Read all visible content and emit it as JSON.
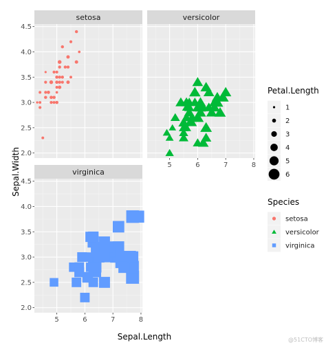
{
  "chart_data": {
    "type": "scatter",
    "facet_by": "Species",
    "xlabel": "Sepal.Length",
    "ylabel": "Sepal.Width",
    "xlim": [
      4.2,
      8.05
    ],
    "ylim": [
      1.9,
      4.55
    ],
    "x_ticks": [
      5,
      6,
      7,
      8
    ],
    "y_ticks": [
      2.0,
      2.5,
      3.0,
      3.5,
      4.0,
      4.5
    ],
    "x_tick_labels": [
      "5",
      "6",
      "7",
      "8"
    ],
    "y_tick_labels": [
      "2.0",
      "2.5",
      "3.0",
      "3.5",
      "4.0",
      "4.5"
    ],
    "grid": true,
    "size_variable": "Petal.Length",
    "colors": {
      "setosa": "#F8766D",
      "versicolor": "#00BA38",
      "virginica": "#619CFF"
    },
    "panels": [
      {
        "name": "setosa",
        "shape": "circle",
        "points": [
          [
            5.1,
            3.5,
            1.4
          ],
          [
            4.9,
            3.0,
            1.4
          ],
          [
            4.7,
            3.2,
            1.3
          ],
          [
            4.6,
            3.1,
            1.5
          ],
          [
            5.0,
            3.6,
            1.4
          ],
          [
            5.4,
            3.9,
            1.7
          ],
          [
            4.6,
            3.4,
            1.4
          ],
          [
            5.0,
            3.4,
            1.5
          ],
          [
            4.4,
            2.9,
            1.4
          ],
          [
            4.9,
            3.1,
            1.5
          ],
          [
            5.4,
            3.7,
            1.5
          ],
          [
            4.8,
            3.4,
            1.6
          ],
          [
            4.8,
            3.0,
            1.4
          ],
          [
            4.3,
            3.0,
            1.1
          ],
          [
            5.8,
            4.0,
            1.2
          ],
          [
            5.7,
            4.4,
            1.5
          ],
          [
            5.4,
            3.9,
            1.3
          ],
          [
            5.1,
            3.5,
            1.4
          ],
          [
            5.7,
            3.8,
            1.7
          ],
          [
            5.1,
            3.8,
            1.5
          ],
          [
            5.4,
            3.4,
            1.7
          ],
          [
            5.1,
            3.7,
            1.5
          ],
          [
            4.6,
            3.6,
            1.0
          ],
          [
            5.1,
            3.3,
            1.7
          ],
          [
            4.8,
            3.4,
            1.9
          ],
          [
            5.0,
            3.0,
            1.6
          ],
          [
            5.0,
            3.4,
            1.6
          ],
          [
            5.2,
            3.5,
            1.5
          ],
          [
            5.2,
            3.4,
            1.4
          ],
          [
            4.7,
            3.2,
            1.6
          ],
          [
            4.8,
            3.1,
            1.6
          ],
          [
            5.4,
            3.4,
            1.5
          ],
          [
            5.2,
            4.1,
            1.5
          ],
          [
            5.5,
            4.2,
            1.4
          ],
          [
            4.9,
            3.1,
            1.5
          ],
          [
            5.0,
            3.2,
            1.2
          ],
          [
            5.5,
            3.5,
            1.3
          ],
          [
            4.9,
            3.6,
            1.4
          ],
          [
            4.4,
            3.0,
            1.3
          ],
          [
            5.1,
            3.4,
            1.5
          ],
          [
            5.0,
            3.5,
            1.3
          ],
          [
            4.5,
            2.3,
            1.3
          ],
          [
            4.4,
            3.2,
            1.3
          ],
          [
            5.0,
            3.5,
            1.6
          ],
          [
            5.1,
            3.8,
            1.9
          ],
          [
            4.8,
            3.0,
            1.4
          ],
          [
            5.1,
            3.8,
            1.6
          ],
          [
            4.6,
            3.2,
            1.4
          ],
          [
            5.3,
            3.7,
            1.5
          ],
          [
            5.0,
            3.3,
            1.4
          ]
        ]
      },
      {
        "name": "versicolor",
        "shape": "triangle",
        "points": [
          [
            7.0,
            3.2,
            4.7
          ],
          [
            6.4,
            3.2,
            4.5
          ],
          [
            6.9,
            3.1,
            4.9
          ],
          [
            5.5,
            2.3,
            4.0
          ],
          [
            6.5,
            2.8,
            4.6
          ],
          [
            5.7,
            2.8,
            4.5
          ],
          [
            6.3,
            3.3,
            4.7
          ],
          [
            4.9,
            2.4,
            3.3
          ],
          [
            6.6,
            2.9,
            4.6
          ],
          [
            5.2,
            2.7,
            3.9
          ],
          [
            5.0,
            2.0,
            3.5
          ],
          [
            5.9,
            3.0,
            4.2
          ],
          [
            6.0,
            2.2,
            4.0
          ],
          [
            6.1,
            2.9,
            4.7
          ],
          [
            5.6,
            2.9,
            3.6
          ],
          [
            6.7,
            3.1,
            4.4
          ],
          [
            5.6,
            3.0,
            4.5
          ],
          [
            5.8,
            2.7,
            4.1
          ],
          [
            6.2,
            2.2,
            4.5
          ],
          [
            5.6,
            2.5,
            3.9
          ],
          [
            5.9,
            3.2,
            4.8
          ],
          [
            6.1,
            2.8,
            4.0
          ],
          [
            6.3,
            2.5,
            4.9
          ],
          [
            6.1,
            2.8,
            4.7
          ],
          [
            6.4,
            2.9,
            4.3
          ],
          [
            6.6,
            3.0,
            4.4
          ],
          [
            6.8,
            2.8,
            4.8
          ],
          [
            6.7,
            3.0,
            5.0
          ],
          [
            6.0,
            2.9,
            4.5
          ],
          [
            5.7,
            2.6,
            3.5
          ],
          [
            5.5,
            2.4,
            3.8
          ],
          [
            5.5,
            2.4,
            3.7
          ],
          [
            5.8,
            2.7,
            3.9
          ],
          [
            6.0,
            2.7,
            5.1
          ],
          [
            5.4,
            3.0,
            4.5
          ],
          [
            6.0,
            3.4,
            4.5
          ],
          [
            6.7,
            3.1,
            4.7
          ],
          [
            6.3,
            2.3,
            4.4
          ],
          [
            5.6,
            3.0,
            4.1
          ],
          [
            5.5,
            2.5,
            4.0
          ],
          [
            5.5,
            2.6,
            4.4
          ],
          [
            6.1,
            3.0,
            4.6
          ],
          [
            5.8,
            2.6,
            4.0
          ],
          [
            5.0,
            2.3,
            3.3
          ],
          [
            5.6,
            2.7,
            4.2
          ],
          [
            5.7,
            3.0,
            4.2
          ],
          [
            5.7,
            2.9,
            4.2
          ],
          [
            6.2,
            2.9,
            4.3
          ],
          [
            5.1,
            2.5,
            3.0
          ],
          [
            5.7,
            2.8,
            4.1
          ]
        ]
      },
      {
        "name": "virginica",
        "shape": "square",
        "points": [
          [
            6.3,
            3.3,
            6.0
          ],
          [
            5.8,
            2.7,
            5.1
          ],
          [
            7.1,
            3.0,
            5.9
          ],
          [
            6.3,
            2.9,
            5.6
          ],
          [
            6.5,
            3.0,
            5.8
          ],
          [
            7.6,
            3.0,
            6.6
          ],
          [
            4.9,
            2.5,
            4.5
          ],
          [
            7.3,
            2.9,
            6.3
          ],
          [
            6.7,
            2.5,
            5.8
          ],
          [
            7.2,
            3.6,
            6.1
          ],
          [
            6.5,
            3.2,
            5.1
          ],
          [
            6.4,
            2.7,
            5.3
          ],
          [
            6.8,
            3.0,
            5.5
          ],
          [
            5.7,
            2.5,
            5.0
          ],
          [
            5.8,
            2.8,
            5.1
          ],
          [
            6.4,
            3.2,
            5.3
          ],
          [
            6.5,
            3.0,
            5.5
          ],
          [
            7.7,
            3.8,
            6.7
          ],
          [
            7.7,
            2.6,
            6.9
          ],
          [
            6.0,
            2.2,
            5.0
          ],
          [
            6.9,
            3.2,
            5.7
          ],
          [
            5.6,
            2.8,
            4.9
          ],
          [
            7.7,
            2.8,
            6.7
          ],
          [
            6.3,
            2.7,
            4.9
          ],
          [
            6.7,
            3.3,
            5.7
          ],
          [
            7.2,
            3.2,
            6.0
          ],
          [
            6.2,
            2.8,
            4.8
          ],
          [
            6.1,
            3.0,
            4.9
          ],
          [
            6.4,
            2.8,
            5.6
          ],
          [
            7.2,
            3.0,
            5.8
          ],
          [
            7.4,
            2.8,
            6.1
          ],
          [
            7.9,
            3.8,
            6.4
          ],
          [
            6.4,
            2.8,
            5.6
          ],
          [
            6.3,
            2.8,
            5.1
          ],
          [
            6.1,
            2.6,
            5.6
          ],
          [
            7.7,
            3.0,
            6.1
          ],
          [
            6.3,
            3.4,
            5.6
          ],
          [
            6.4,
            3.1,
            5.5
          ],
          [
            6.0,
            3.0,
            4.8
          ],
          [
            6.9,
            3.1,
            5.4
          ],
          [
            6.7,
            3.1,
            5.6
          ],
          [
            6.9,
            3.1,
            5.1
          ],
          [
            5.8,
            2.7,
            5.1
          ],
          [
            6.8,
            3.2,
            5.9
          ],
          [
            6.7,
            3.3,
            5.7
          ],
          [
            6.7,
            3.0,
            5.2
          ],
          [
            6.3,
            2.5,
            5.0
          ],
          [
            6.5,
            3.0,
            5.2
          ],
          [
            6.2,
            3.4,
            5.4
          ],
          [
            5.9,
            3.0,
            5.1
          ]
        ]
      }
    ],
    "legends": {
      "size": {
        "title": "Petal.Length",
        "entries": [
          {
            "label": "1",
            "value": 1
          },
          {
            "label": "2",
            "value": 2
          },
          {
            "label": "3",
            "value": 3
          },
          {
            "label": "4",
            "value": 4
          },
          {
            "label": "5",
            "value": 5
          },
          {
            "label": "6",
            "value": 6
          }
        ]
      },
      "species": {
        "title": "Species",
        "entries": [
          {
            "label": "setosa",
            "shape": "circle"
          },
          {
            "label": "versicolor",
            "shape": "triangle"
          },
          {
            "label": "virginica",
            "shape": "square"
          }
        ]
      }
    }
  },
  "watermark": "@51CTO博客"
}
